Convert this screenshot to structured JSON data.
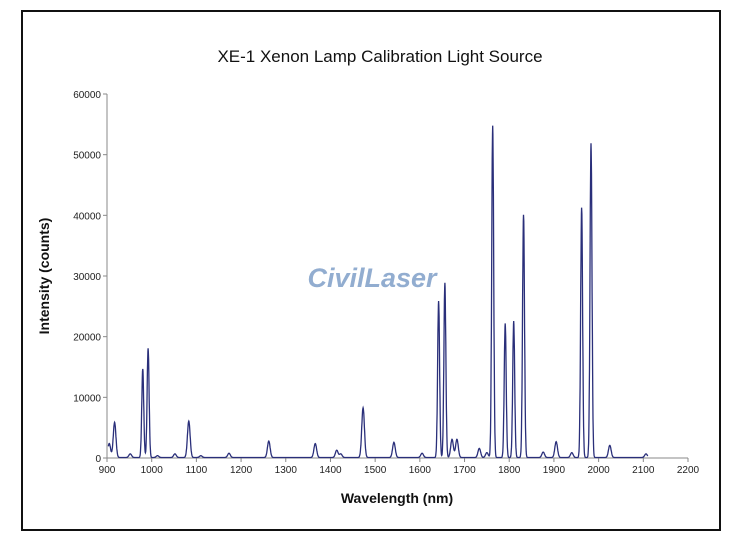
{
  "chart_data": {
    "type": "line",
    "title": "XE-1 Xenon Lamp Calibration Light Source",
    "xlabel": "Wavelength (nm)",
    "ylabel": "Intensity (counts)",
    "xlim": [
      900,
      2200
    ],
    "ylim": [
      0,
      60000
    ],
    "xticks": [
      900,
      1000,
      1100,
      1200,
      1300,
      1400,
      1500,
      1600,
      1700,
      1800,
      1900,
      2000,
      2100,
      2200
    ],
    "yticks": [
      0,
      10000,
      20000,
      30000,
      40000,
      50000,
      60000
    ],
    "grid": false,
    "line_color": "#2a2f7a",
    "peaks": [
      {
        "x": 905,
        "y": 2300
      },
      {
        "x": 917,
        "y": 5800
      },
      {
        "x": 952,
        "y": 600
      },
      {
        "x": 980,
        "y": 14600
      },
      {
        "x": 992,
        "y": 18000
      },
      {
        "x": 1013,
        "y": 300
      },
      {
        "x": 1052,
        "y": 600
      },
      {
        "x": 1083,
        "y": 6000
      },
      {
        "x": 1110,
        "y": 300
      },
      {
        "x": 1173,
        "y": 700
      },
      {
        "x": 1262,
        "y": 2700
      },
      {
        "x": 1366,
        "y": 2300
      },
      {
        "x": 1414,
        "y": 1200
      },
      {
        "x": 1423,
        "y": 600
      },
      {
        "x": 1473,
        "y": 8200
      },
      {
        "x": 1542,
        "y": 2500
      },
      {
        "x": 1605,
        "y": 700
      },
      {
        "x": 1642,
        "y": 25800
      },
      {
        "x": 1656,
        "y": 28800
      },
      {
        "x": 1672,
        "y": 3000
      },
      {
        "x": 1683,
        "y": 3000
      },
      {
        "x": 1733,
        "y": 1500
      },
      {
        "x": 1750,
        "y": 800
      },
      {
        "x": 1763,
        "y": 54700
      },
      {
        "x": 1791,
        "y": 22100
      },
      {
        "x": 1810,
        "y": 22500
      },
      {
        "x": 1832,
        "y": 40000
      },
      {
        "x": 1876,
        "y": 900
      },
      {
        "x": 1905,
        "y": 2600
      },
      {
        "x": 1940,
        "y": 800
      },
      {
        "x": 1962,
        "y": 41200
      },
      {
        "x": 1983,
        "y": 51800
      },
      {
        "x": 2025,
        "y": 2000
      },
      {
        "x": 2106,
        "y": 600
      }
    ]
  },
  "watermark": "CivilLaser"
}
